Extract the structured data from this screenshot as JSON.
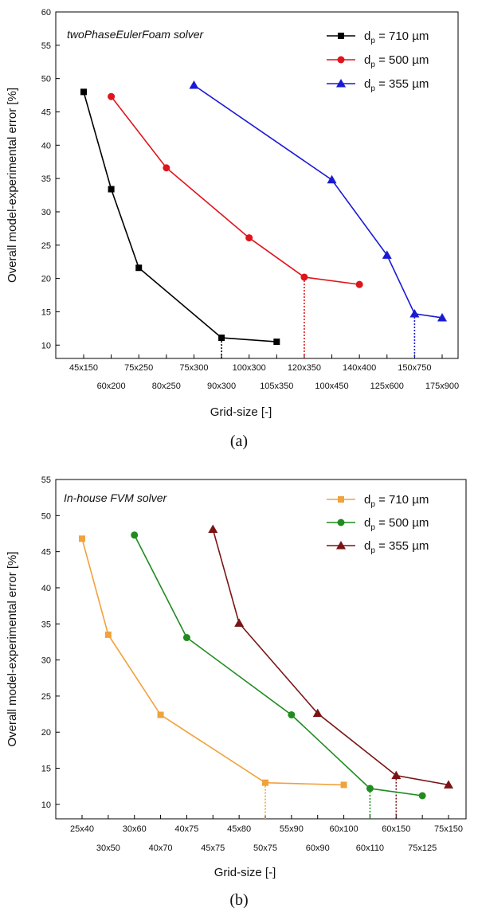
{
  "chart_data": [
    {
      "type": "line",
      "panel_label": "(a)",
      "title": "twoPhaseEulerFoam solver",
      "xlabel": "Grid-size [-]",
      "ylabel": "Overall model-experimental error [%]",
      "ylim": [
        8,
        60
      ],
      "yticks": [
        "10",
        "15",
        "20",
        "25",
        "30",
        "35",
        "40",
        "45",
        "50",
        "55",
        "60"
      ],
      "categories": [
        "45x150",
        "60x200",
        "75x250",
        "80x250",
        "75x300",
        "90x300",
        "100x300",
        "105x350",
        "120x350",
        "100x450",
        "140x400",
        "125x600",
        "150x750",
        "175x900"
      ],
      "legend_position": "top-right",
      "series": [
        {
          "name": "dp = 710 µm",
          "legend_main": "d",
          "legend_sub": "p",
          "legend_rest": " = 710 µm",
          "color": "#000000",
          "marker": "square",
          "x": [
            "45x150",
            "60x200",
            "75x250",
            "90x300",
            "105x350"
          ],
          "values": [
            48,
            33.4,
            21.6,
            11.1,
            10.5
          ],
          "dotted_at": "90x300"
        },
        {
          "name": "dp = 500 µm",
          "legend_main": "d",
          "legend_sub": "p",
          "legend_rest": " = 500 µm",
          "color": "#e0141b",
          "marker": "circle",
          "x": [
            "60x200",
            "80x250",
            "100x300",
            "120x350",
            "140x400"
          ],
          "values": [
            47.3,
            36.6,
            26.1,
            20.2,
            19.1
          ],
          "dotted_at": "120x350"
        },
        {
          "name": "dp = 355 µm",
          "legend_main": "d",
          "legend_sub": "p",
          "legend_rest": " = 355 µm",
          "color": "#1a1ad4",
          "marker": "triangle",
          "x": [
            "75x300",
            "100x450",
            "125x600",
            "150x750",
            "175x900"
          ],
          "values": [
            49,
            34.8,
            23.5,
            14.7,
            14.1
          ],
          "dotted_at": "150x750"
        }
      ]
    },
    {
      "type": "line",
      "panel_label": "(b)",
      "title": "In-house FVM solver",
      "xlabel": "Grid-size [-]",
      "ylabel": "Overall model-experimental error [%]",
      "ylim": [
        8,
        55
      ],
      "yticks": [
        "10",
        "15",
        "20",
        "25",
        "30",
        "35",
        "40",
        "45",
        "50",
        "55"
      ],
      "categories": [
        "25x40",
        "30x50",
        "30x60",
        "40x70",
        "40x75",
        "45x75",
        "45x80",
        "50x75",
        "55x90",
        "60x90",
        "60x100",
        "60x110",
        "60x150",
        "75x125",
        "75x150"
      ],
      "legend_position": "top-right",
      "series": [
        {
          "name": "dp = 710 µm",
          "legend_main": "d",
          "legend_sub": "p",
          "legend_rest": " = 710 µm",
          "color": "#f0a23c",
          "marker": "square",
          "x": [
            "25x40",
            "30x50",
            "40x70",
            "50x75",
            "60x100"
          ],
          "values": [
            46.8,
            33.5,
            22.4,
            13,
            12.7
          ],
          "dotted_at": "50x75"
        },
        {
          "name": "dp = 500 µm",
          "legend_main": "d",
          "legend_sub": "p",
          "legend_rest": " = 500 µm",
          "color": "#1e8c1e",
          "marker": "circle",
          "x": [
            "30x60",
            "40x75",
            "55x90",
            "60x110",
            "75x125"
          ],
          "values": [
            47.3,
            33.1,
            22.4,
            12.2,
            11.2
          ],
          "dotted_at": "60x110"
        },
        {
          "name": "dp = 355 µm",
          "legend_main": "d",
          "legend_sub": "p",
          "legend_rest": " = 355 µm",
          "color": "#7a1414",
          "marker": "triangle",
          "x": [
            "45x75",
            "45x80",
            "60x90",
            "60x150",
            "75x150"
          ],
          "values": [
            48.1,
            35.1,
            22.6,
            14,
            12.7
          ],
          "dotted_at": "60x150"
        }
      ]
    }
  ]
}
